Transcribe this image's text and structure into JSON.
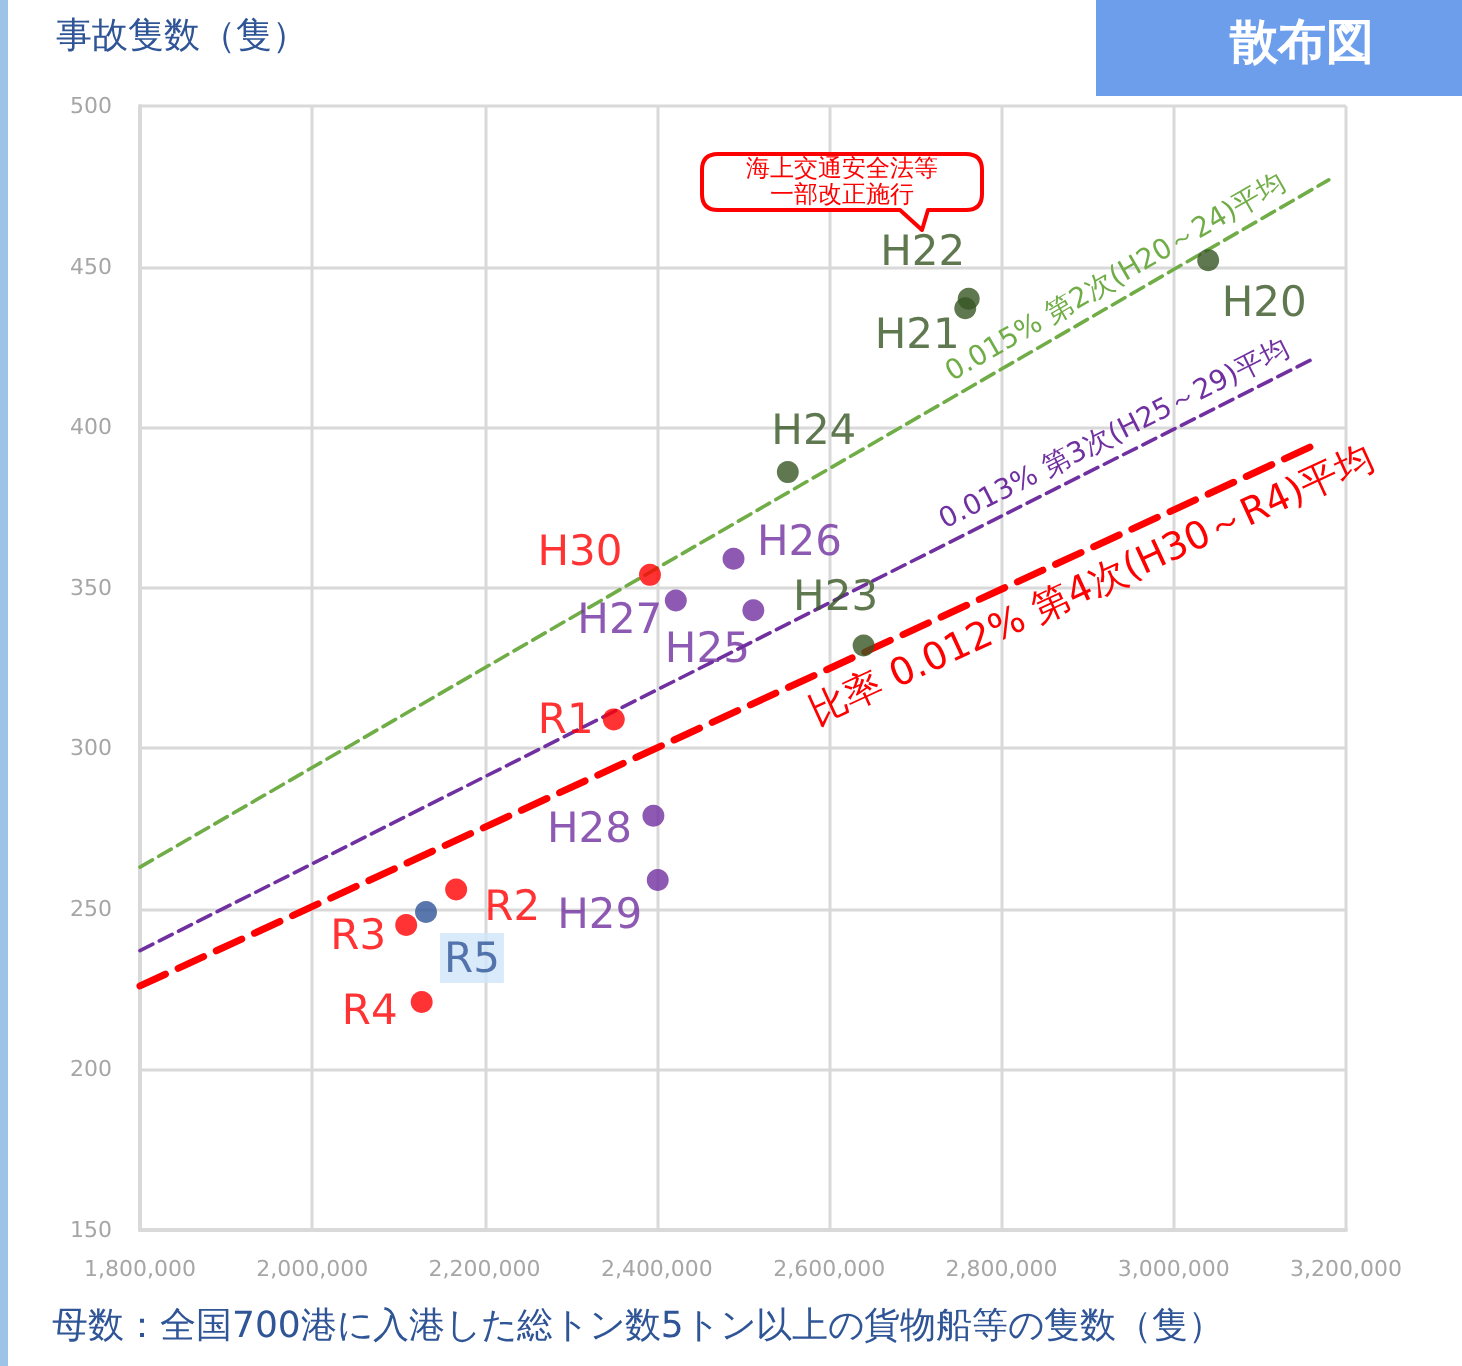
{
  "chart_data": {
    "type": "scatter",
    "title": "散布図",
    "ylabel": "事故隻数（隻）",
    "xlabel": "母数：全国700港に入港した総トン数5トン以上の貨物船等の隻数（隻）",
    "annotations": [
      "海上交通安全法等一部改正施行"
    ],
    "xlim": [
      1800000,
      3200000
    ],
    "xticks": [
      {
        "value": 1800000,
        "label": "1,800,000"
      },
      {
        "value": 2000000,
        "label": "2,000,000"
      },
      {
        "value": 2200000,
        "label": "2,200,000"
      },
      {
        "value": 2400000,
        "label": "2,400,000"
      },
      {
        "value": 2600000,
        "label": "2,600,000"
      },
      {
        "value": 2800000,
        "label": "2,800,000"
      },
      {
        "value": 3000000,
        "label": "3,000,000"
      },
      {
        "value": 3200000,
        "label": "3,200,000"
      }
    ],
    "ylim": [
      150,
      500
    ],
    "yticks": [
      150,
      200,
      250,
      300,
      350,
      400,
      450,
      500
    ],
    "grid": true,
    "legend": false,
    "marker": "circle",
    "series": [
      {
        "name": "H20",
        "color": "#375623",
        "x": [
          3040000
        ],
        "values": [
          452
        ]
      },
      {
        "name": "H21",
        "color": "#375623",
        "x": [
          2758000
        ],
        "values": [
          437
        ]
      },
      {
        "name": "H22",
        "color": "#375623",
        "x": [
          2762000
        ],
        "values": [
          440
        ]
      },
      {
        "name": "H23",
        "color": "#375623",
        "x": [
          2640000
        ],
        "values": [
          332
        ]
      },
      {
        "name": "H24",
        "color": "#375623",
        "x": [
          2552000
        ],
        "values": [
          386
        ]
      },
      {
        "name": "H25",
        "color": "#7030a0",
        "x": [
          2512000
        ],
        "values": [
          343
        ]
      },
      {
        "name": "H26",
        "color": "#7030a0",
        "x": [
          2489000
        ],
        "values": [
          359
        ]
      },
      {
        "name": "H27",
        "color": "#7030a0",
        "x": [
          2422000
        ],
        "values": [
          346
        ]
      },
      {
        "name": "H28",
        "color": "#7030a0",
        "x": [
          2396000
        ],
        "values": [
          279
        ]
      },
      {
        "name": "H29",
        "color": "#7030a0",
        "x": [
          2401000
        ],
        "values": [
          259
        ]
      },
      {
        "name": "H30",
        "color": "#ff0000",
        "x": [
          2392000
        ],
        "values": [
          354
        ]
      },
      {
        "name": "R1",
        "color": "#ff0000",
        "x": [
          2350000
        ],
        "values": [
          309
        ]
      },
      {
        "name": "R2",
        "color": "#ff0000",
        "x": [
          2167000
        ],
        "values": [
          256
        ]
      },
      {
        "name": "R3",
        "color": "#ff0000",
        "x": [
          2109000
        ],
        "values": [
          245
        ]
      },
      {
        "name": "R4",
        "color": "#ff0000",
        "x": [
          2127000
        ],
        "values": [
          221
        ]
      },
      {
        "name": "R5",
        "color": "#2f5597",
        "x": [
          2132000
        ],
        "values": [
          249
        ]
      },
      {
        "name": "0.015% 第2次(H20～24)平均",
        "type": "line",
        "marker": "none",
        "line_style": "dashed",
        "color": "#70ad47",
        "x": [
          1800000,
          3180000
        ],
        "values": [
          263,
          477
        ]
      },
      {
        "name": "0.013% 第3次(H25～29)平均",
        "type": "line",
        "marker": "none",
        "line_style": "dashed",
        "color": "#7030a0",
        "x": [
          1800000,
          3160000
        ],
        "values": [
          237,
          421
        ]
      },
      {
        "name": "比率 0.012% 第4次(H30～R4)平均",
        "type": "line",
        "marker": "none",
        "line_style": "dashed",
        "color": "#ff0000",
        "x": [
          1800000,
          3160000
        ],
        "values": [
          226,
          394
        ]
      }
    ]
  }
}
